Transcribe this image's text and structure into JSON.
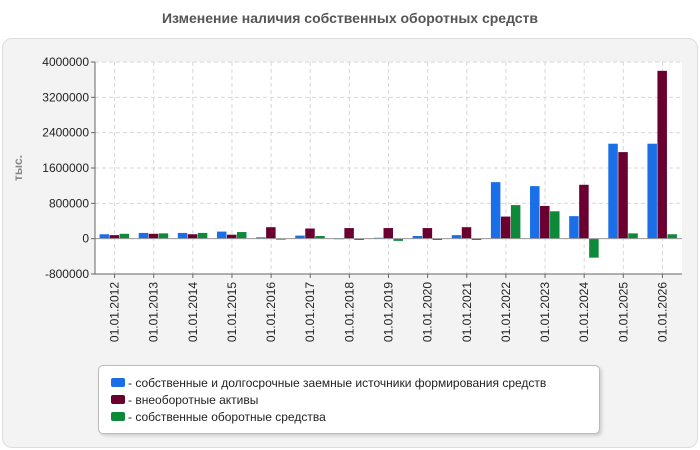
{
  "chart_data": {
    "type": "bar",
    "title": "Изменение наличия собственных оборотных средств",
    "ylabel": "тыс.",
    "xlabel": "",
    "ylim": [
      -800000,
      4000000
    ],
    "yticks": [
      "4000000",
      "3200000",
      "2400000",
      "1600000",
      "800000",
      "0",
      "-800000"
    ],
    "ytick_values": [
      4000000,
      3200000,
      2400000,
      1600000,
      800000,
      0,
      -800000
    ],
    "categories": [
      "01.01.2012",
      "01.01.2013",
      "01.01.2014",
      "01.01.2015",
      "01.01.2016",
      "01.01.2017",
      "01.01.2018",
      "01.01.2019",
      "01.01.2020",
      "01.01.2021",
      "01.01.2022",
      "01.01.2023",
      "01.01.2024",
      "01.01.2025",
      "01.01.2026"
    ],
    "series": [
      {
        "name": "собственные и долгосрочные заемные источники формирования средств",
        "color": "#1a6fe8",
        "values": [
          100000,
          130000,
          130000,
          160000,
          30000,
          70000,
          10000,
          20000,
          60000,
          80000,
          1280000,
          1190000,
          510000,
          2150000,
          2150000
        ]
      },
      {
        "name": "внеоборотные активы",
        "color": "#6b0030",
        "values": [
          80000,
          110000,
          100000,
          90000,
          260000,
          230000,
          240000,
          240000,
          240000,
          260000,
          500000,
          740000,
          1220000,
          1960000,
          3800000
        ]
      },
      {
        "name": "собственные оборотные средства",
        "color": "#0c8a3a",
        "values": [
          110000,
          120000,
          130000,
          150000,
          -20000,
          60000,
          -30000,
          -50000,
          -30000,
          -30000,
          760000,
          620000,
          -430000,
          120000,
          100000
        ]
      }
    ],
    "grid": true,
    "legend_position": "bottom"
  }
}
